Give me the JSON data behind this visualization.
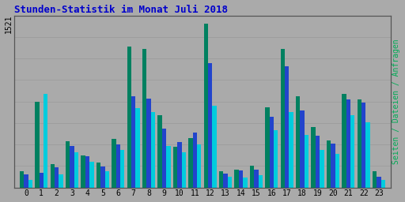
{
  "title": "Stunden-Statistik im Monat Juli 2018",
  "ylabel_right": "Seiten / Dateien / Anfragen",
  "hours": [
    0,
    1,
    2,
    3,
    4,
    5,
    6,
    7,
    8,
    9,
    10,
    11,
    12,
    13,
    14,
    15,
    16,
    17,
    18,
    19,
    20,
    21,
    22,
    23
  ],
  "seiten": [
    150,
    800,
    220,
    430,
    300,
    230,
    450,
    1310,
    1290,
    670,
    380,
    460,
    1521,
    150,
    170,
    200,
    750,
    1290,
    850,
    560,
    440,
    870,
    820,
    150
  ],
  "dateien": [
    120,
    140,
    185,
    390,
    290,
    195,
    400,
    850,
    830,
    550,
    420,
    510,
    1160,
    130,
    160,
    170,
    660,
    1130,
    720,
    480,
    410,
    820,
    790,
    100
  ],
  "anfragen": [
    70,
    870,
    120,
    330,
    240,
    150,
    350,
    740,
    700,
    390,
    330,
    400,
    760,
    100,
    90,
    115,
    530,
    700,
    490,
    350,
    310,
    670,
    610,
    70
  ],
  "color_seiten": "#008060",
  "color_dateien": "#2244cc",
  "color_anfragen": "#00ccdd",
  "bg_color": "#aaaaaa",
  "title_color": "#0000cc",
  "ylabel_right_color": "#00aa55",
  "bar_width": 0.28,
  "ylim": 1600,
  "figsize": [
    5.12,
    2.56
  ],
  "dpi": 100
}
